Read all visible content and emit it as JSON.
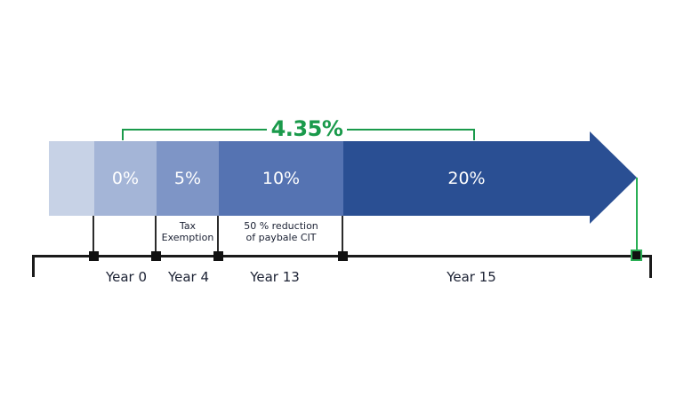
{
  "headline": {
    "label": "4.35%"
  },
  "segments": [
    {
      "label": "",
      "color": "#c7d2e6"
    },
    {
      "label": "0%",
      "color": "#a4b5d7"
    },
    {
      "label": "5%",
      "color": "#7e95c6"
    },
    {
      "label": "10%",
      "color": "#5573b2"
    },
    {
      "label": "20%",
      "color": "#2a4f93"
    }
  ],
  "annotations": [
    {
      "line1": "Tax",
      "line2": "Exemption"
    },
    {
      "line1": "50 % reduction",
      "line2": "of paybale CIT"
    }
  ],
  "timeline": {
    "labels": [
      "Year 0",
      "Year 4",
      "Year 13",
      "Year 15"
    ]
  },
  "colors": {
    "accent_green": "#1a9a4b",
    "drop_line_green": "#2aaf55",
    "arrow_blue": "#2a4f93",
    "timeline_black": "#1a1a1a",
    "label_dark": "#1b2133",
    "segment_text": "#ffffff"
  }
}
